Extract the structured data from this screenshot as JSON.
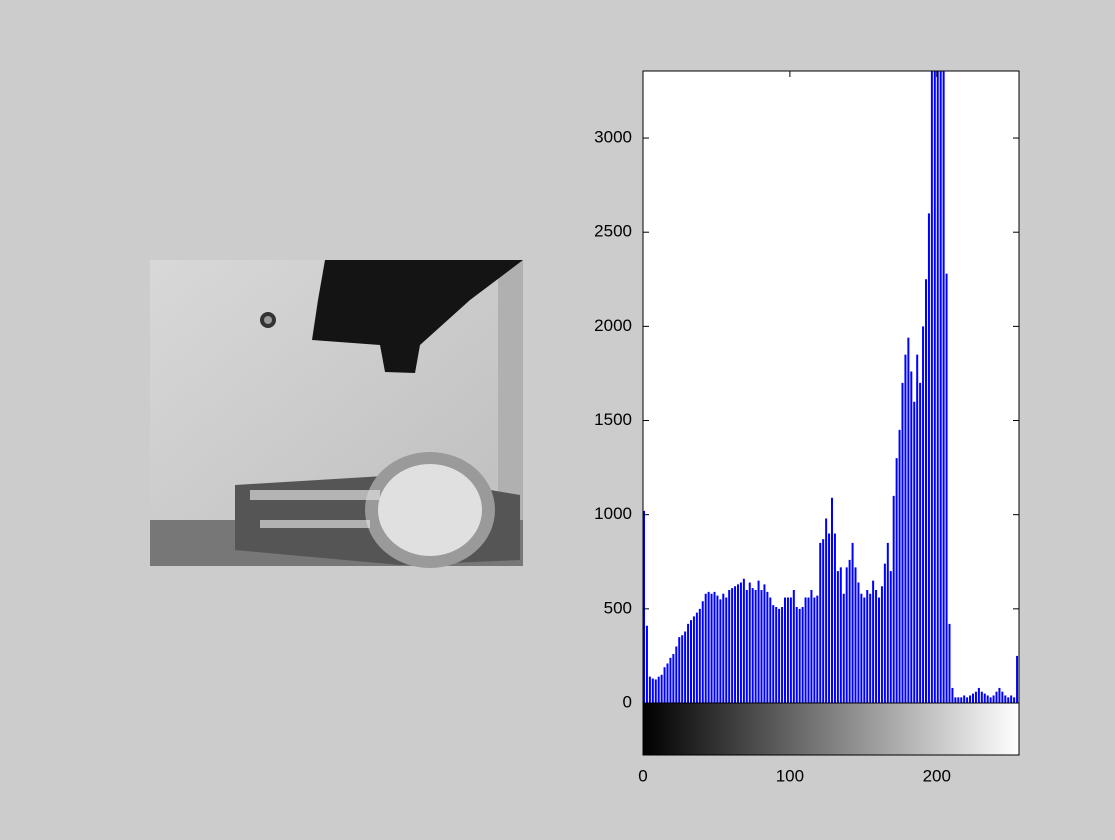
{
  "chart_data": {
    "type": "bar",
    "x": [
      0,
      2,
      4,
      6,
      8,
      10,
      12,
      14,
      16,
      18,
      20,
      22,
      24,
      26,
      28,
      30,
      32,
      34,
      36,
      38,
      40,
      42,
      44,
      46,
      48,
      50,
      52,
      54,
      56,
      58,
      60,
      62,
      64,
      66,
      68,
      70,
      72,
      74,
      76,
      78,
      80,
      82,
      84,
      86,
      88,
      90,
      92,
      94,
      96,
      98,
      100,
      102,
      104,
      106,
      108,
      110,
      112,
      114,
      116,
      118,
      120,
      122,
      124,
      126,
      128,
      130,
      132,
      134,
      136,
      138,
      140,
      142,
      144,
      146,
      148,
      150,
      152,
      154,
      156,
      158,
      160,
      162,
      164,
      166,
      168,
      170,
      172,
      174,
      176,
      178,
      180,
      182,
      184,
      186,
      188,
      190,
      192,
      194,
      196,
      198,
      200,
      202,
      204,
      206,
      208,
      210,
      212,
      214,
      216,
      218,
      220,
      222,
      224,
      226,
      228,
      230,
      232,
      234,
      236,
      238,
      240,
      242,
      244,
      246,
      248,
      250,
      252,
      254
    ],
    "values": [
      1020,
      410,
      140,
      130,
      125,
      140,
      150,
      190,
      210,
      240,
      260,
      300,
      350,
      360,
      380,
      420,
      440,
      460,
      480,
      500,
      540,
      580,
      590,
      580,
      590,
      570,
      550,
      580,
      560,
      600,
      610,
      620,
      630,
      640,
      660,
      600,
      640,
      610,
      600,
      650,
      600,
      630,
      590,
      560,
      520,
      510,
      500,
      510,
      560,
      560,
      560,
      600,
      510,
      500,
      510,
      560,
      560,
      600,
      560,
      570,
      850,
      870,
      980,
      900,
      1090,
      900,
      700,
      720,
      580,
      720,
      760,
      850,
      720,
      640,
      580,
      560,
      600,
      580,
      650,
      600,
      560,
      620,
      740,
      850,
      700,
      1100,
      1300,
      1450,
      1700,
      1850,
      1940,
      1760,
      1600,
      1850,
      1700,
      2000,
      2250,
      2600,
      3356,
      3356,
      3356,
      3356,
      3356,
      2280,
      420,
      80,
      30,
      30,
      30,
      40,
      30,
      40,
      50,
      60,
      80,
      60,
      50,
      40,
      30,
      40,
      60,
      80,
      60,
      40,
      30,
      40,
      30,
      250
    ],
    "color": "#0000ff",
    "xlim": [
      0,
      256
    ],
    "xticks": [
      0,
      100,
      200
    ],
    "ylim": [
      0,
      3356
    ],
    "yticks": [
      0,
      500,
      1000,
      1500,
      2000,
      2500,
      3000
    ]
  }
}
